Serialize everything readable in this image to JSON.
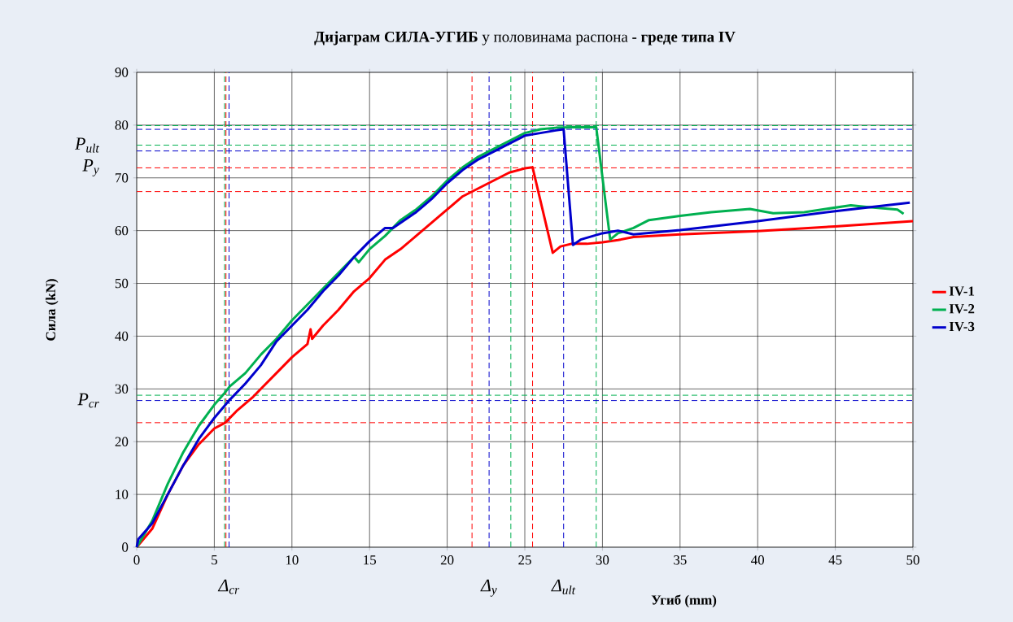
{
  "chart_data": {
    "type": "line",
    "title": "**Дијаграм СИЛА-УГИБ** у половинама распона  **-  греде типа IV**",
    "xlabel": "Угиб (mm)",
    "ylabel": "Сила (kN)",
    "xlim": [
      0,
      50
    ],
    "ylim": [
      0,
      90
    ],
    "xticks": [
      0,
      5,
      10,
      15,
      20,
      25,
      30,
      35,
      40,
      45,
      50
    ],
    "yticks": [
      0,
      10,
      20,
      30,
      40,
      50,
      60,
      70,
      80,
      90
    ],
    "grid": true,
    "legend": "right",
    "marker": "none",
    "line_style": "solid",
    "series": [
      {
        "name": "IV-1",
        "color": "#ff0000",
        "x": [
          0,
          1,
          2,
          3,
          4,
          5,
          5.7,
          6.5,
          7.5,
          8,
          9,
          10,
          11,
          11.2,
          11.3,
          12,
          13,
          14,
          15,
          16,
          17,
          18,
          19,
          20,
          21,
          22,
          23,
          24,
          25,
          25.5,
          26.8,
          27.3,
          28,
          29,
          30,
          31,
          32,
          35,
          40,
          45,
          50
        ],
        "values": [
          0,
          3.5,
          10,
          15.5,
          19.5,
          22.5,
          23.6,
          26,
          28.5,
          30,
          33,
          36,
          38.5,
          41.3,
          39.5,
          42,
          45,
          48.5,
          51,
          54.5,
          56.5,
          59,
          61.5,
          64,
          66.5,
          68,
          69.5,
          71,
          71.8,
          72,
          55.8,
          57,
          57.5,
          57.5,
          57.8,
          58.2,
          58.8,
          59.3,
          59.9,
          60.8,
          61.8
        ]
      },
      {
        "name": "IV-2",
        "color": "#00b050",
        "x": [
          0,
          1,
          2,
          3,
          4,
          5,
          5.6,
          6,
          7,
          8,
          9,
          10,
          11,
          12,
          13,
          14,
          14.3,
          15,
          16,
          17,
          18,
          19,
          20,
          21,
          22,
          23,
          24,
          25,
          26,
          27,
          28,
          29.6,
          30.5,
          31,
          32,
          33,
          35,
          37,
          39.5,
          41,
          43,
          46,
          47,
          49,
          49.4
        ],
        "values": [
          0,
          5,
          12,
          18,
          23,
          27,
          29,
          30.5,
          33,
          36.5,
          39.5,
          43,
          46,
          49,
          52,
          55,
          54,
          56.5,
          59,
          62,
          64,
          66.5,
          69.5,
          72,
          74,
          75.5,
          77,
          78.5,
          79.2,
          79.5,
          79.6,
          79.6,
          58.3,
          59.5,
          60.5,
          62,
          62.8,
          63.5,
          64.1,
          63.3,
          63.5,
          64.8,
          64.5,
          64,
          63.2
        ]
      },
      {
        "name": "IV-3",
        "color": "#0000cc",
        "x": [
          0,
          0.1,
          1,
          2,
          3,
          4,
          5,
          5.95,
          7,
          8,
          9,
          10,
          11,
          12,
          13,
          14,
          15,
          16,
          16.5,
          17,
          18,
          19,
          20,
          21,
          22,
          23,
          24,
          25,
          26,
          27,
          27.5,
          28.1,
          28.6,
          30,
          31,
          32,
          35,
          40,
          45,
          49.8
        ],
        "values": [
          0,
          1.5,
          4.5,
          10,
          15.5,
          20.5,
          24.5,
          27.8,
          31,
          34.5,
          39,
          42,
          45,
          48.5,
          51.5,
          55,
          58,
          60.5,
          60.5,
          61.5,
          63.5,
          66,
          69,
          71.5,
          73.5,
          75,
          76.5,
          78,
          78.5,
          79,
          79.2,
          57.3,
          58.3,
          59.5,
          60,
          59.3,
          60.1,
          61.8,
          63.7,
          65.3
        ]
      }
    ],
    "ref_lines": [
      {
        "axis": "x",
        "value": 5.75,
        "color": "#ff0000",
        "line_style": "dashed"
      },
      {
        "axis": "x",
        "value": 5.66,
        "color": "#00b050",
        "line_style": "dashed"
      },
      {
        "axis": "x",
        "value": 5.95,
        "color": "#0000cc",
        "line_style": "dashed",
        "label": "Δ$_{cr}$"
      },
      {
        "axis": "x",
        "value": 21.6,
        "color": "#ff0000",
        "line_style": "dashed"
      },
      {
        "axis": "x",
        "value": 22.7,
        "color": "#0000cc",
        "line_style": "dashed",
        "label": "Δ$_{y}$"
      },
      {
        "axis": "x",
        "value": 24.1,
        "color": "#00b050",
        "line_style": "dashed"
      },
      {
        "axis": "x",
        "value": 25.5,
        "color": "#ff0000",
        "line_style": "dashed"
      },
      {
        "axis": "x",
        "value": 27.5,
        "color": "#0000cc",
        "line_style": "dashed",
        "label": "Δ$_{ult}$"
      },
      {
        "axis": "x",
        "value": 29.6,
        "color": "#00b050",
        "line_style": "dashed"
      },
      {
        "axis": "y",
        "value": 79.9,
        "color": "#00b050",
        "line_style": "dashed"
      },
      {
        "axis": "y",
        "value": 79.2,
        "color": "#0000cc",
        "line_style": "dashed"
      },
      {
        "axis": "y",
        "value": 76.2,
        "color": "#00b050",
        "line_style": "dashed",
        "label": "P$_{ult}$"
      },
      {
        "axis": "y",
        "value": 75.1,
        "color": "#0000cc",
        "line_style": "dashed"
      },
      {
        "axis": "y",
        "value": 71.9,
        "color": "#ff0000",
        "line_style": "dashed",
        "label": "P$_{y}$"
      },
      {
        "axis": "y",
        "value": 67.4,
        "color": "#ff0000",
        "line_style": "dashed"
      },
      {
        "axis": "y",
        "value": 28.8,
        "color": "#00b050",
        "line_style": "dashed"
      },
      {
        "axis": "y",
        "value": 27.8,
        "color": "#0000cc",
        "line_style": "dashed",
        "label": "P$_{cr}$"
      },
      {
        "axis": "y",
        "value": 23.6,
        "color": "#ff0000",
        "line_style": "dashed"
      }
    ]
  }
}
